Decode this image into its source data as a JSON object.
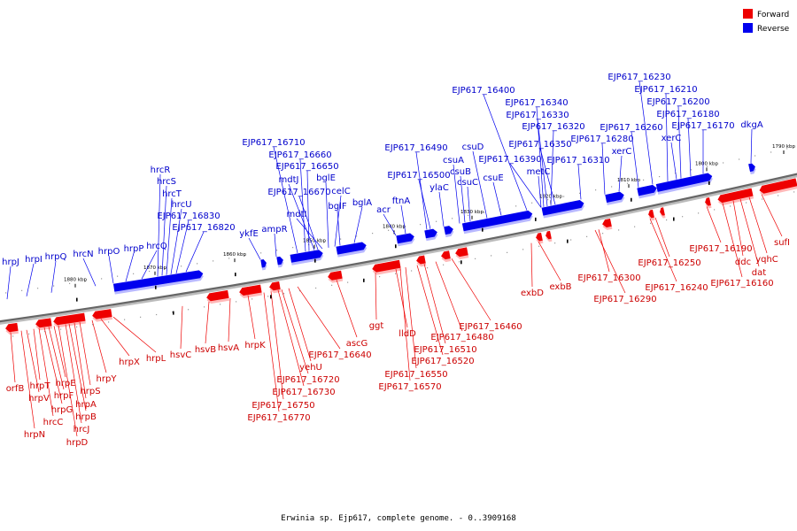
{
  "caption": "Erwinia sp. Ejp617, complete genome. - 0..3909168",
  "legend": [
    {
      "label": "Forward",
      "color": "#ee0000"
    },
    {
      "label": "Reverse",
      "color": "#0000ee"
    }
  ],
  "ticks": [
    "1880 kbp",
    "1870 kbp",
    "1860 kbp",
    "1850 kbp",
    "1840 kbp",
    "1830 kbp",
    "1820 kbp",
    "1810 kbp",
    "1800 kbp",
    "1790 kbp"
  ],
  "forward_genes": [
    "orfB",
    "hrpN",
    "hrpV",
    "hrpT",
    "hrcC",
    "hrpG",
    "hrpF",
    "hrpE",
    "hrpD",
    "hrcJ",
    "hrpB",
    "hrpA",
    "hrpS",
    "hrpY",
    "hrpX",
    "hrpL",
    "hsvC",
    "hsvB",
    "hsvA",
    "hrpK",
    "EJP617_16770",
    "EJP617_16750",
    "EJP617_16730",
    "EJP617_16720",
    "yehU",
    "EJP617_16640",
    "ascG",
    "ggt",
    "lldD",
    "EJP617_16570",
    "EJP617_16550",
    "EJP617_16520",
    "EJP617_16510",
    "EJP617_16480",
    "EJP617_16460",
    "exbD",
    "exbB",
    "EJP617_16290",
    "EJP617_16300",
    "EJP617_16240",
    "EJP617_16250",
    "EJP617_16190",
    "EJP617_16160",
    "ddc",
    "dat",
    "yqhC",
    "sufI"
  ],
  "reverse_genes": [
    "hrpJ",
    "hrpI",
    "hrpQ",
    "hrcN",
    "hrpO",
    "hrpP",
    "hrcQ",
    "hrcR",
    "hrcS",
    "hrcT",
    "hrcU",
    "EJP617_16830",
    "EJP617_16820",
    "ykfE",
    "ampR",
    "EJP617_16710",
    "EJP617_16660",
    "EJP617_16650",
    "mdtJ",
    "EJP617_16670",
    "mdtI",
    "bglE",
    "celC",
    "bglF",
    "bglA",
    "acr",
    "ftnA",
    "EJP617_16490",
    "EJP617_16500",
    "ylaC",
    "csuA",
    "csuB",
    "csuC",
    "csuD",
    "csuE",
    "EJP617_16400",
    "EJP617_16390",
    "EJP617_16340",
    "EJP617_16330",
    "EJP617_16320",
    "EJP617_16350",
    "metC",
    "EJP617_16310",
    "EJP617_16280",
    "xerC",
    "EJP617_16260",
    "EJP617_16230",
    "EJP617_16210",
    "EJP617_16200",
    "EJP617_16180",
    "xerC",
    "EJP617_16170",
    "dkgA"
  ]
}
